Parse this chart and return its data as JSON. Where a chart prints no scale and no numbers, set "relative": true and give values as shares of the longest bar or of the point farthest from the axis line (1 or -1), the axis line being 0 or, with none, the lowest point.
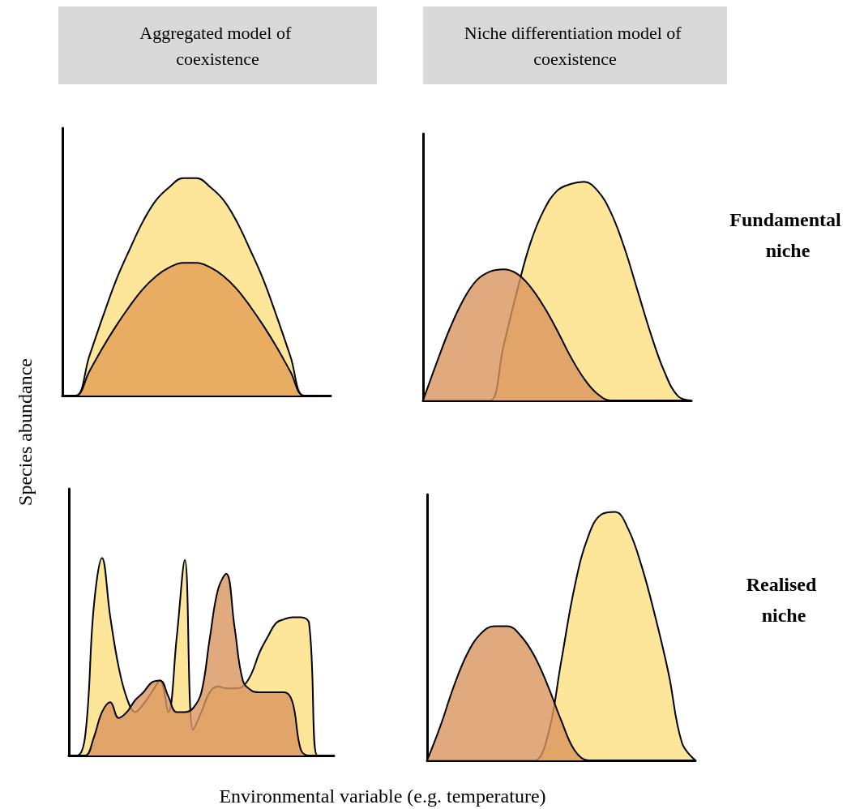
{
  "chart_data": [
    {
      "type": "area",
      "title": "Aggregated model of coexistence",
      "relative": true,
      "tick_labels": false,
      "ylabel": "Species abundance",
      "categories": [
        null,
        null,
        null,
        null,
        null,
        null,
        null,
        null,
        null,
        null,
        null,
        null,
        null,
        null,
        null,
        null,
        null,
        null,
        null,
        null,
        null
      ],
      "series": [
        {
          "color": "#fde59a",
          "values": [
            0,
            0,
            0.18,
            0.36,
            0.53,
            0.67,
            0.8,
            0.9,
            0.96,
            1,
            1,
            0.96,
            0.9,
            0.8,
            0.67,
            0.53,
            0.36,
            0.18,
            0,
            0,
            0
          ]
        },
        {
          "color": "#e39d55",
          "values": [
            0,
            0,
            0.11,
            0.22,
            0.32,
            0.41,
            0.49,
            0.55,
            0.59,
            0.61,
            0.61,
            0.59,
            0.55,
            0.49,
            0.41,
            0.32,
            0.22,
            0.11,
            0,
            0,
            0
          ]
        }
      ]
    },
    {
      "type": "area",
      "title": "Niche differentiation model of coexistence",
      "relative": true,
      "tick_labels": false,
      "annotations": [
        "Fundamental niche"
      ],
      "categories": [
        null,
        null,
        null,
        null,
        null,
        null,
        null,
        null,
        null,
        null,
        null,
        null,
        null,
        null,
        null,
        null,
        null,
        null,
        null,
        null,
        null
      ],
      "series": [
        {
          "color": "#fde59a",
          "values": [
            0,
            0,
            0,
            0,
            0,
            0,
            0.25,
            0.5,
            0.72,
            0.87,
            0.96,
            0.99,
            1,
            0.96,
            0.86,
            0.7,
            0.5,
            0.3,
            0.13,
            0.02,
            0
          ]
        },
        {
          "color": "#d9955e",
          "values": [
            0,
            0.17,
            0.33,
            0.46,
            0.55,
            0.59,
            0.6,
            0.58,
            0.52,
            0.43,
            0.32,
            0.2,
            0.1,
            0.03,
            0,
            0,
            0,
            0,
            0,
            0,
            0
          ]
        }
      ]
    },
    {
      "type": "area",
      "relative": true,
      "tick_labels": false,
      "xlabel": "Environmental variable (e.g. temperature)",
      "categories": [
        null,
        null,
        null,
        null,
        null,
        null,
        null,
        null,
        null,
        null,
        null,
        null,
        null,
        null,
        null,
        null,
        null,
        null,
        null,
        null,
        null,
        null,
        null,
        null,
        null,
        null,
        null,
        null,
        null,
        null,
        null,
        null,
        null
      ],
      "series": [
        {
          "color": "#fde59a",
          "values": [
            0,
            0,
            0.11,
            0.75,
            1,
            0.7,
            0.45,
            0.29,
            0.22,
            0.26,
            0.32,
            0.38,
            0.22,
            0.59,
            0.99,
            0.13,
            0.22,
            0.32,
            0.35,
            0.34,
            0.34,
            0.35,
            0.41,
            0.52,
            0.6,
            0.67,
            0.69,
            0.7,
            0.7,
            0.67,
            0,
            0,
            0
          ]
        },
        {
          "color": "#d9955e",
          "values": [
            0,
            0,
            0,
            0.09,
            0.22,
            0.27,
            0.19,
            0.22,
            0.28,
            0.32,
            0.37,
            0.38,
            0.3,
            0.22,
            0.22,
            0.24,
            0.32,
            0.59,
            0.84,
            0.92,
            0.65,
            0.38,
            0.33,
            0.32,
            0.32,
            0.32,
            0.32,
            0.27,
            0.03,
            0,
            0,
            0,
            0
          ]
        }
      ]
    },
    {
      "type": "area",
      "relative": true,
      "tick_labels": false,
      "annotations": [
        "Realised niche"
      ],
      "categories": [
        null,
        null,
        null,
        null,
        null,
        null,
        null,
        null,
        null,
        null,
        null,
        null,
        null,
        null,
        null,
        null,
        null,
        null,
        null,
        null,
        null
      ],
      "series": [
        {
          "color": "#fde59a",
          "values": [
            0,
            0,
            0,
            0,
            0,
            0,
            0,
            0,
            0,
            0.1,
            0.4,
            0.7,
            0.9,
            0.99,
            1,
            0.93,
            0.78,
            0.58,
            0.35,
            0.07,
            0
          ]
        },
        {
          "color": "#d9955e",
          "values": [
            0,
            0.14,
            0.3,
            0.43,
            0.51,
            0.54,
            0.54,
            0.5,
            0.42,
            0.3,
            0.16,
            0.04,
            0,
            0,
            0,
            0,
            0,
            0,
            0,
            0,
            0
          ]
        }
      ]
    }
  ]
}
